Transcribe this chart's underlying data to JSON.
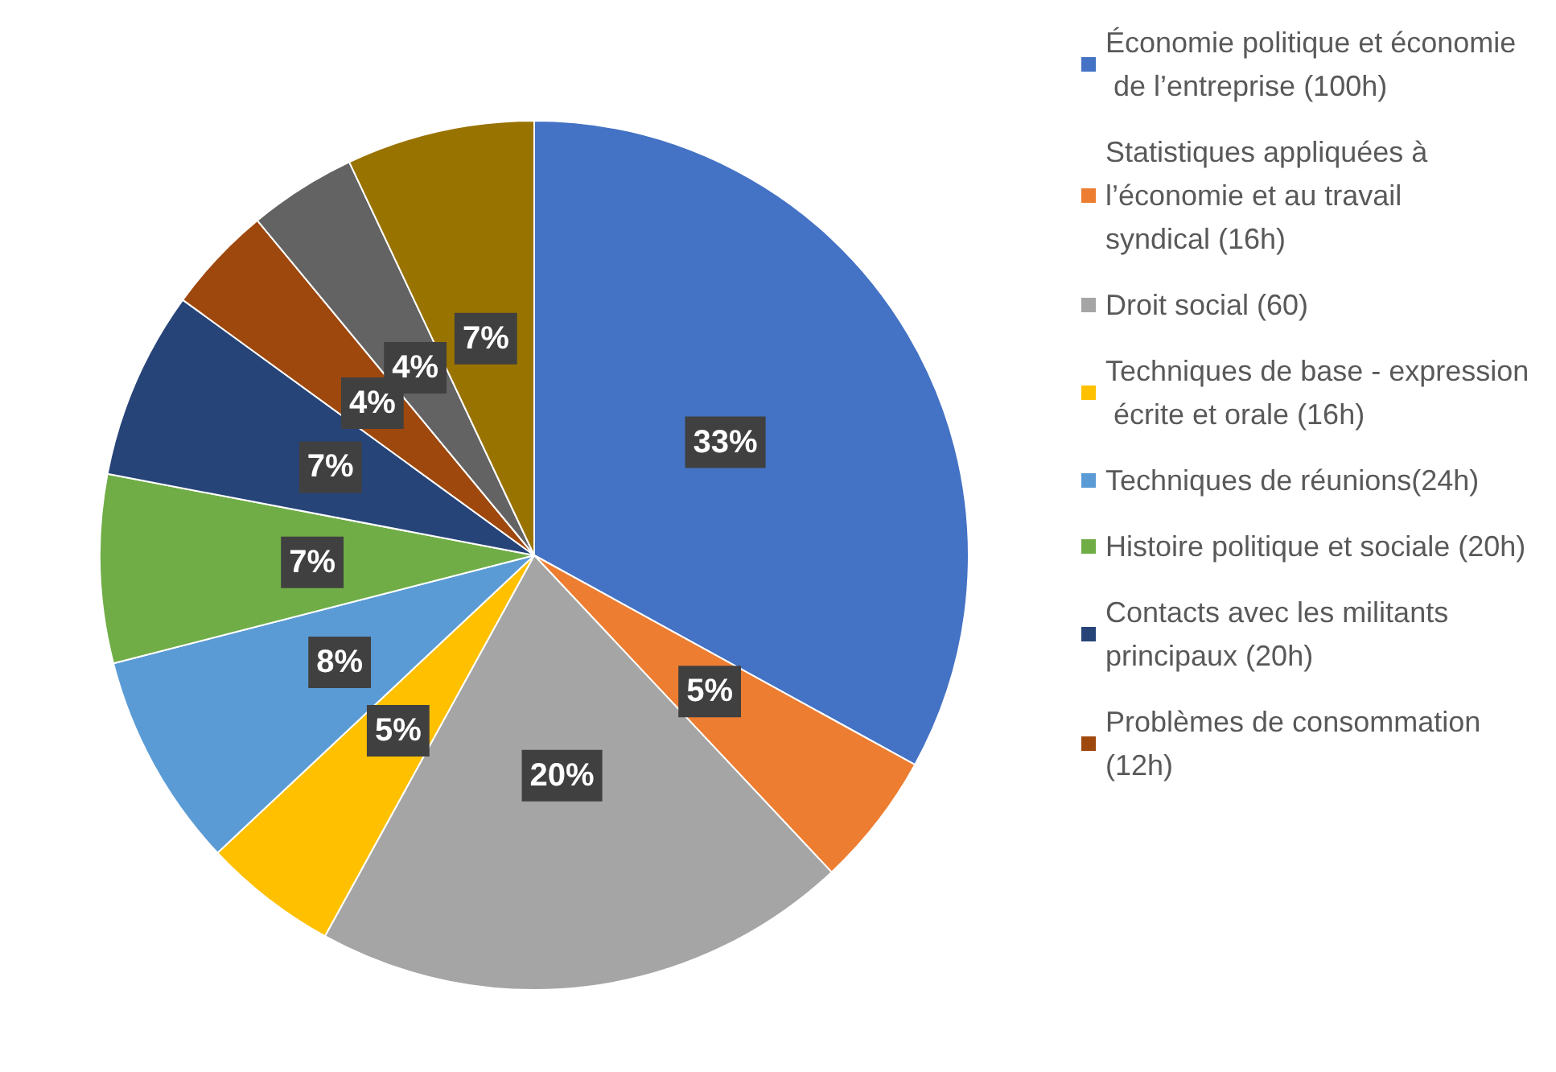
{
  "chart_data": {
    "type": "pie",
    "categories": [
      "Économie politique et économie de l’entreprise (100h)",
      "Statistiques appliquées à l’économie et au travail syndical (16h)",
      "Droit social (60)",
      "Techniques de base - expression écrite et orale (16h)",
      "Techniques de réunions(24h)",
      "Histoire politique et sociale (20h)",
      "Contacts avec les militants principaux (20h)",
      "Problèmes de consommation (12h)",
      null,
      null
    ],
    "values": [
      33,
      5,
      20,
      5,
      8,
      7,
      7,
      4,
      4,
      7
    ],
    "value_labels": [
      "33%",
      "5%",
      "20%",
      "5%",
      "8%",
      "7%",
      "7%",
      "4%",
      "4%",
      "7%"
    ],
    "colors": [
      "#4472c4",
      "#ed7d31",
      "#a5a5a5",
      "#ffc000",
      "#5b9bd5",
      "#70ad47",
      "#264478",
      "#9e480e",
      "#636363",
      "#997300"
    ],
    "legend": "right"
  }
}
